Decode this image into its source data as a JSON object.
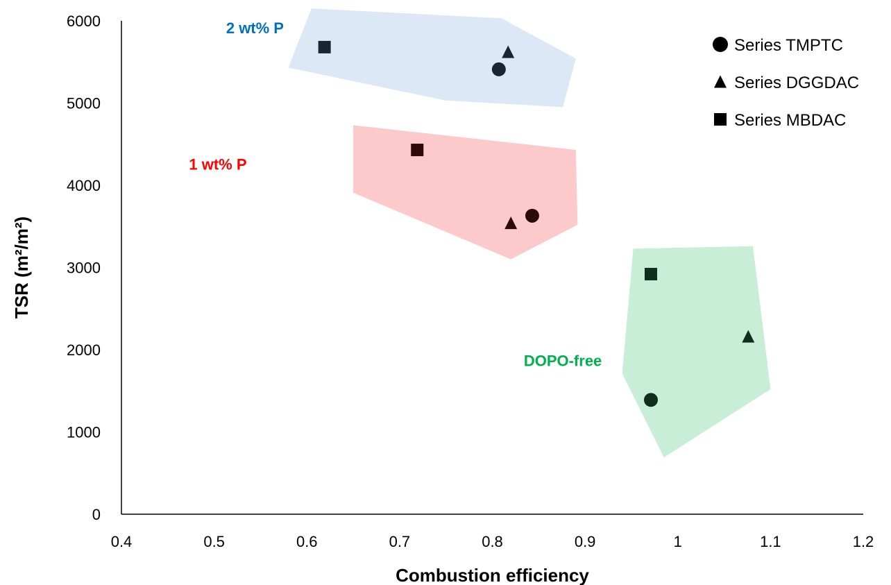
{
  "chart_data": {
    "type": "scatter",
    "title": "",
    "xlabel": "Combustion efficiency",
    "ylabel": "TSR (m²/m²)",
    "xlim": [
      0.4,
      1.2
    ],
    "ylim": [
      0,
      6000
    ],
    "xticks": [
      "0.4",
      "0.5",
      "0.6",
      "0.7",
      "0.8",
      "0.9",
      "1",
      "1.1",
      "1.2"
    ],
    "yticks": [
      "0",
      "1000",
      "2000",
      "3000",
      "4000",
      "5000",
      "6000"
    ],
    "grid": false,
    "legend_position": "top-right",
    "series": [
      {
        "name": "Series TMPTC",
        "marker": "circle",
        "x": [
          0.807,
          0.843,
          0.971
        ],
        "y": [
          5410,
          3630,
          1390
        ]
      },
      {
        "name": "Series DGGDAC",
        "marker": "triangle",
        "x": [
          0.817,
          0.82,
          1.076
        ],
        "y": [
          5620,
          3540,
          2160
        ]
      },
      {
        "name": "Series MBDAC",
        "marker": "square",
        "x": [
          0.619,
          0.719,
          0.971
        ],
        "y": [
          5680,
          4430,
          2920
        ]
      }
    ],
    "groups": [
      {
        "label": "2 wt% P",
        "color": "#0070C0",
        "fill": "#dce8f5",
        "polygon": [
          [
            0.58,
            5430
          ],
          [
            0.605,
            6150
          ],
          [
            0.81,
            6030
          ],
          [
            0.89,
            5540
          ],
          [
            0.876,
            4950
          ],
          [
            0.75,
            5030
          ]
        ]
      },
      {
        "label": "1 wt% P",
        "color": "#FF0000",
        "fill": "#fccaca",
        "polygon": [
          [
            0.65,
            4730
          ],
          [
            0.89,
            4430
          ],
          [
            0.892,
            3520
          ],
          [
            0.82,
            3100
          ],
          [
            0.65,
            3910
          ]
        ]
      },
      {
        "label": "DOPO-free",
        "color": "#00B050",
        "fill": "#c9eed8",
        "polygon": [
          [
            0.952,
            3230
          ],
          [
            1.081,
            3260
          ],
          [
            1.1,
            1520
          ],
          [
            0.985,
            690
          ],
          [
            0.94,
            1710
          ]
        ]
      }
    ],
    "marker_colors": {
      "2 wt% P": "#1a2533",
      "1 wt% P": "#2b0a0a",
      "DOPO-free": "#0f2e1c"
    }
  }
}
